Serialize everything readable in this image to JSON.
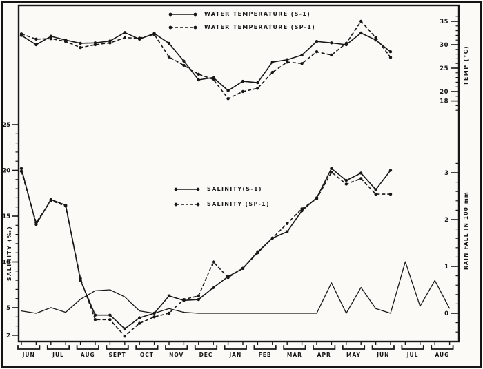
{
  "figure": {
    "colors": {
      "ink": "#171717",
      "paper": "#fbfaf6"
    }
  },
  "chart_data": {
    "type": "line",
    "title": "",
    "x_unit": "fortnightly samples (2 per month)",
    "months": [
      "JUN",
      "JUL",
      "AUG",
      "SEPT",
      "OCT",
      "NOV",
      "DEC",
      "JAN",
      "FEB",
      "MAR",
      "APR",
      "MAY",
      "JUN",
      "JUL",
      "AUG"
    ],
    "samples_per_month": 2,
    "axes": {
      "temp": {
        "label": "TEMP (°C)",
        "ticks": [
          35,
          30,
          25,
          20,
          18
        ],
        "range": [
          16,
          36
        ],
        "position": "right-top"
      },
      "salinity": {
        "label": "SALINITY (‰)",
        "ticks": [
          25,
          20,
          15,
          10,
          5,
          2
        ],
        "range": [
          1,
          25
        ],
        "position": "left"
      },
      "rainfall": {
        "label": "RAIN FALL IN 100 mm",
        "ticks": [
          3,
          2,
          1,
          0
        ],
        "range": [
          -0.5,
          3.3
        ],
        "position": "right-bottom"
      }
    },
    "series": [
      {
        "name": "WATER TEMPERATURE (S-1)",
        "axis": "temp",
        "style": "solid",
        "markers": true,
        "values": [
          32.0,
          30.0,
          31.8,
          31.0,
          30.3,
          30.4,
          30.8,
          32.6,
          31.2,
          32.4,
          30.3,
          26.5,
          22.5,
          23.0,
          20.2,
          22.2,
          21.9,
          26.3,
          26.8,
          27.8,
          30.7,
          30.4,
          30.0,
          32.5,
          31.0,
          28.5
        ]
      },
      {
        "name": "WATER TEMPERATURE (SP-1)",
        "axis": "temp",
        "style": "dashed",
        "markers": true,
        "values": [
          32.3,
          31.2,
          31.3,
          30.7,
          29.4,
          30.0,
          30.4,
          31.5,
          31.4,
          32.2,
          27.4,
          25.6,
          23.7,
          22.6,
          18.5,
          20.0,
          20.7,
          24.1,
          26.3,
          26.0,
          28.5,
          27.8,
          30.3,
          35.0,
          31.5,
          27.3
        ]
      },
      {
        "name": "SALINITY(S-1)",
        "axis": "salinity",
        "style": "solid",
        "markers": true,
        "values": [
          20.2,
          14.1,
          16.8,
          16.2,
          8.0,
          4.2,
          4.2,
          2.7,
          3.9,
          4.4,
          6.3,
          5.8,
          5.9,
          7.2,
          8.4,
          9.3,
          11.1,
          12.6,
          13.3,
          15.6,
          17.0,
          20.2,
          18.9,
          19.7,
          17.9,
          20.0
        ]
      },
      {
        "name": "SALINITY (SP-1)",
        "axis": "salinity",
        "style": "dashed",
        "markers": true,
        "values": [
          19.9,
          14.3,
          16.7,
          16.1,
          8.2,
          3.7,
          3.7,
          1.9,
          3.3,
          4.0,
          4.4,
          5.9,
          6.3,
          10.0,
          8.3,
          9.3,
          11.0,
          12.6,
          14.2,
          15.8,
          16.9,
          19.8,
          18.5,
          19.1,
          17.4,
          17.4
        ]
      },
      {
        "name": "RAIN FALL IN 100 mm",
        "axis": "rainfall",
        "style": "solid",
        "markers": false,
        "values": [
          0.05,
          0.0,
          0.12,
          0.02,
          0.3,
          0.48,
          0.5,
          0.35,
          0.05,
          0.0,
          0.1,
          0.02,
          0.0,
          0.0,
          0.0,
          0.0,
          0.0,
          0.0,
          0.0,
          0.0,
          0.0,
          0.65,
          0.0,
          0.55,
          0.1,
          0.0,
          1.1,
          0.15,
          0.7,
          0.1
        ]
      }
    ]
  }
}
